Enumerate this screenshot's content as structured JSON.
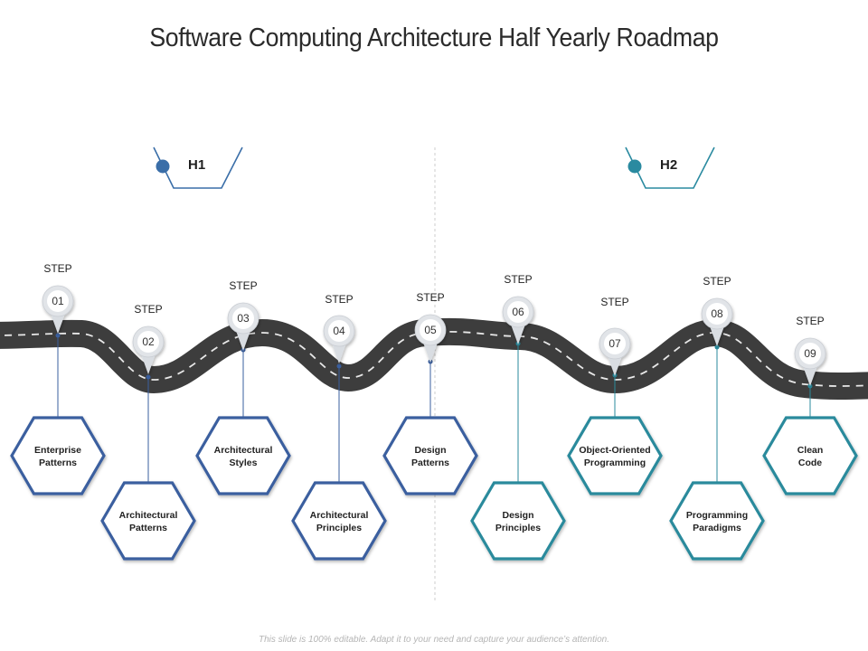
{
  "title": "Software Computing Architecture Half Yearly Roadmap",
  "footer": "This slide is 100% editable. Adapt it to your need and capture your audience’s attention.",
  "halves": [
    {
      "label": "H1",
      "color": "#3a6ea8"
    },
    {
      "label": "H2",
      "color": "#2a8aa0"
    }
  ],
  "steps": [
    {
      "step_label": "STEP",
      "number": "01",
      "text": [
        "Enterprise",
        "Patterns"
      ],
      "color": "#3a5f9f"
    },
    {
      "step_label": "STEP",
      "number": "02",
      "text": [
        "Architectural",
        "Patterns"
      ],
      "color": "#3a5f9f"
    },
    {
      "step_label": "STEP",
      "number": "03",
      "text": [
        "Architectural",
        "Styles"
      ],
      "color": "#3a5f9f"
    },
    {
      "step_label": "STEP",
      "number": "04",
      "text": [
        "Architectural",
        "Principles"
      ],
      "color": "#3a5f9f"
    },
    {
      "step_label": "STEP",
      "number": "05",
      "text": [
        "Design",
        "Patterns"
      ],
      "color": "#3a5f9f"
    },
    {
      "step_label": "STEP",
      "number": "06",
      "text": [
        "Design",
        "Principles"
      ],
      "color": "#2a8a9c"
    },
    {
      "step_label": "STEP",
      "number": "07",
      "text": [
        "Object-Oriented",
        "Programming"
      ],
      "color": "#2a8a9c"
    },
    {
      "step_label": "STEP",
      "number": "08",
      "text": [
        "Programming",
        "Paradigms"
      ],
      "color": "#2a8a9c"
    },
    {
      "step_label": "STEP",
      "number": "09",
      "text": [
        "Clean",
        "Code"
      ],
      "color": "#2a8a9c"
    }
  ],
  "colors": {
    "road": "#3d3d3d",
    "road_dash": "#e8e8e8",
    "divider": "#cccccc"
  }
}
